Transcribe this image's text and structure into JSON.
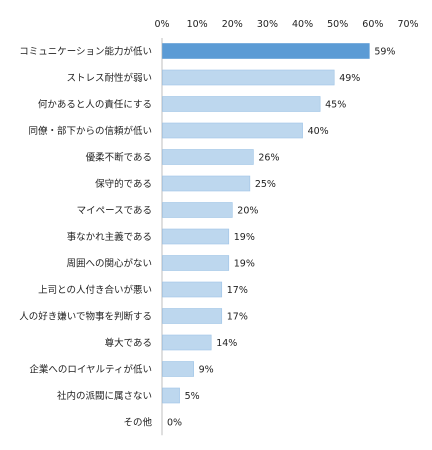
{
  "chart_data": {
    "type": "bar",
    "orientation": "horizontal",
    "xlim": [
      0,
      70
    ],
    "ticks": [
      "0%",
      "10%",
      "20%",
      "30%",
      "40%",
      "50%",
      "60%",
      "70%"
    ],
    "tick_values": [
      0,
      10,
      20,
      30,
      40,
      50,
      60,
      70
    ],
    "categories": [
      "コミュニケーション能力が低い",
      "ストレス耐性が弱い",
      "何かあると人の責任にする",
      "同僚・部下からの信頼が低い",
      "優柔不断である",
      "保守的である",
      "マイペースである",
      "事なかれ主義である",
      "周囲への関心がない",
      "上司との人付き合いが悪い",
      "人の好き嫌いで物事を判断する",
      "尊大である",
      "企業へのロイヤルティが低い",
      "社内の派閥に属さない",
      "その他"
    ],
    "values": [
      59,
      49,
      45,
      40,
      26,
      25,
      20,
      19,
      19,
      17,
      17,
      14,
      9,
      5,
      0
    ],
    "value_labels": [
      "59%",
      "49%",
      "45%",
      "40%",
      "26%",
      "25%",
      "20%",
      "19%",
      "19%",
      "17%",
      "17%",
      "14%",
      "9%",
      "5%",
      "0%"
    ],
    "highlight_index": 0,
    "colors": {
      "highlight": "#5b9bd5",
      "bar": "#bdd7ee",
      "bar_border": "#9dc3e6",
      "axis": "#bfbfbf",
      "text": "#222222"
    },
    "grid": false
  }
}
